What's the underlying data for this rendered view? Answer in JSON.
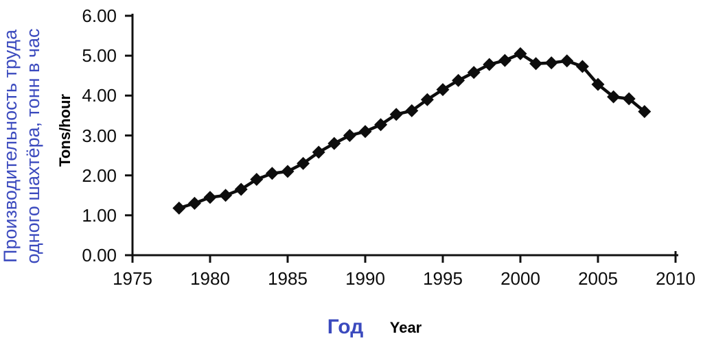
{
  "chart_data": {
    "type": "line",
    "title": "",
    "ylabel_ru_lines": [
      "Производительность труда",
      "одного шахтёра, тонн в час"
    ],
    "ylabel_en": "Tons/hour",
    "xlabel_ru": "Год",
    "xlabel_en": "Year",
    "series": [
      {
        "name": "productivity-tons-per-hour",
        "x": [
          1978,
          1979,
          1980,
          1981,
          1982,
          1983,
          1984,
          1985,
          1986,
          1987,
          1988,
          1989,
          1990,
          1991,
          1992,
          1993,
          1994,
          1995,
          1996,
          1997,
          1998,
          1999,
          2000,
          2001,
          2002,
          2003,
          2004,
          2005,
          2006,
          2007,
          2008
        ],
        "y": [
          1.18,
          1.3,
          1.45,
          1.5,
          1.65,
          1.9,
          2.05,
          2.1,
          2.3,
          2.58,
          2.8,
          3.0,
          3.1,
          3.27,
          3.53,
          3.62,
          3.9,
          4.15,
          4.38,
          4.58,
          4.78,
          4.88,
          5.05,
          4.8,
          4.82,
          4.87,
          4.73,
          4.28,
          3.97,
          3.92,
          3.6
        ]
      }
    ],
    "xlim": [
      1975,
      2010
    ],
    "ylim": [
      0,
      6
    ],
    "x_ticks": [
      "1975",
      "1980",
      "1985",
      "1990",
      "1995",
      "2000",
      "2005",
      "2010"
    ],
    "y_ticks": [
      "0.00",
      "1.00",
      "2.00",
      "3.00",
      "4.00",
      "5.00",
      "6.00"
    ],
    "grid": false,
    "legend": "none",
    "marker": "diamond",
    "colors": {
      "line": "#0d0d0d",
      "axis": "#111111",
      "ru_label_blue": "#3b4abe",
      "tick_text": "#0d0d0d"
    }
  }
}
